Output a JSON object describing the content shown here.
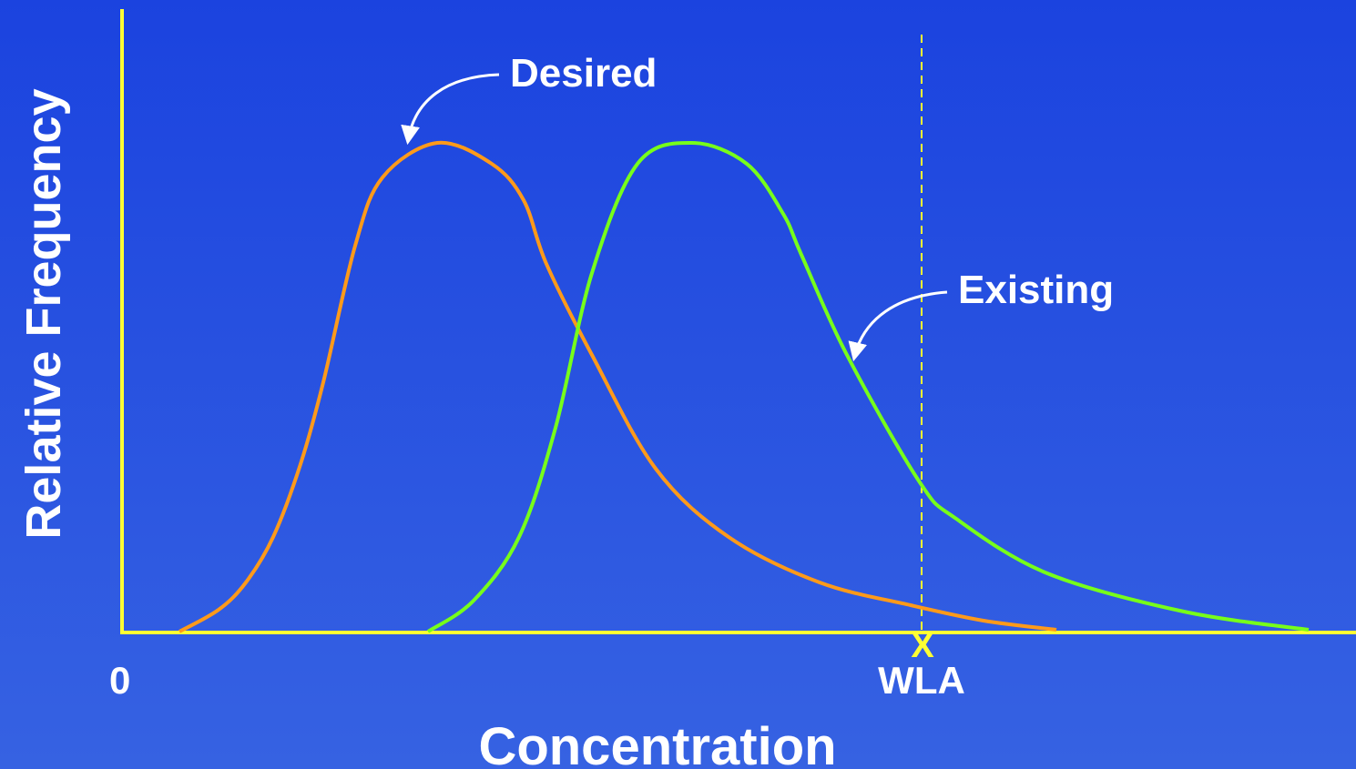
{
  "axes": {
    "y_label": "Relative Frequency",
    "x_label": "Concentration",
    "origin_label": "0",
    "marker_label": "WLA",
    "marker_symbol": "X"
  },
  "curves": [
    {
      "label": "Desired"
    },
    {
      "label": "Existing"
    }
  ]
}
